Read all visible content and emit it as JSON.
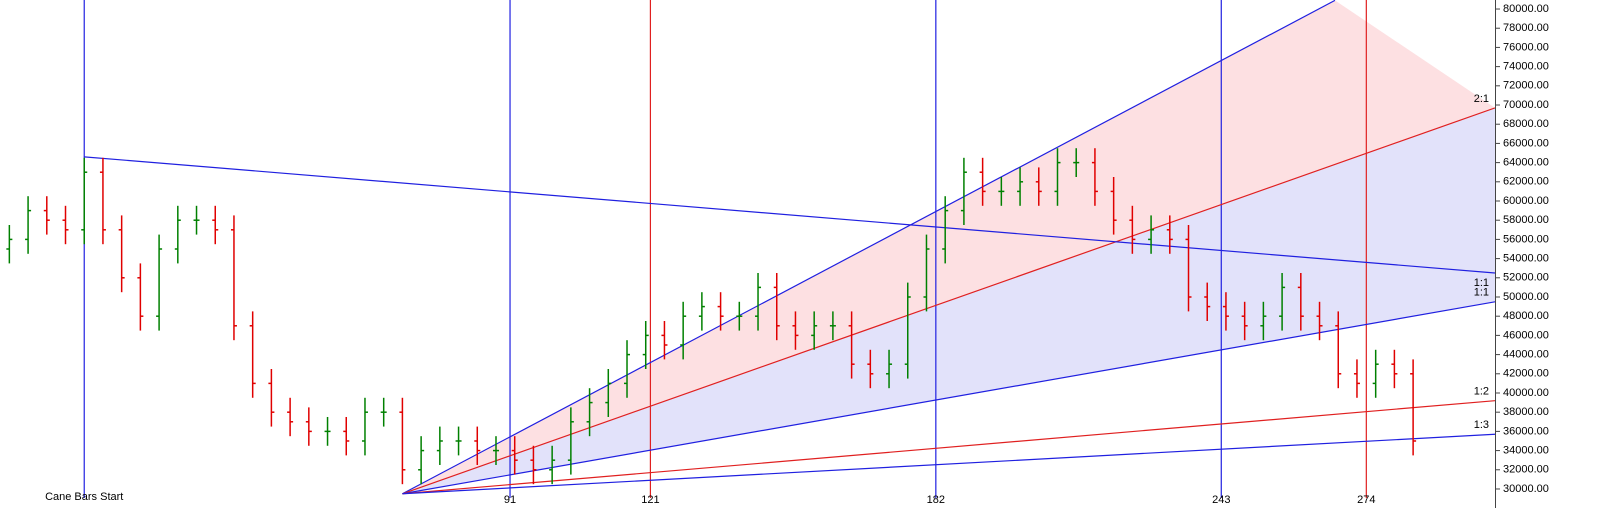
{
  "chart_data": {
    "type": "ohlc",
    "xlim": [
      -18,
      301.5
    ],
    "ylim": [
      29060,
      80940
    ],
    "yticks": [
      {
        "value": 30000,
        "label": "30000.00"
      },
      {
        "value": 32000,
        "label": "32000.00"
      },
      {
        "value": 34000,
        "label": "34000.00"
      },
      {
        "value": 36000,
        "label": "36000.00"
      },
      {
        "value": 38000,
        "label": "38000.00"
      },
      {
        "value": 40000,
        "label": "40000.00"
      },
      {
        "value": 42000,
        "label": "42000.00"
      },
      {
        "value": 44000,
        "label": "44000.00"
      },
      {
        "value": 46000,
        "label": "46000.00"
      },
      {
        "value": 48000,
        "label": "48000.00"
      },
      {
        "value": 50000,
        "label": "50000.00"
      },
      {
        "value": 52000,
        "label": "52000.00"
      },
      {
        "value": 54000,
        "label": "54000.00"
      },
      {
        "value": 56000,
        "label": "56000.00"
      },
      {
        "value": 58000,
        "label": "58000.00"
      },
      {
        "value": 60000,
        "label": "60000.00"
      },
      {
        "value": 62000,
        "label": "62000.00"
      },
      {
        "value": 64000,
        "label": "64000.00"
      },
      {
        "value": 66000,
        "label": "66000.00"
      },
      {
        "value": 68000,
        "label": "68000.00"
      },
      {
        "value": 70000,
        "label": "70000.00"
      },
      {
        "value": 72000,
        "label": "72000.00"
      },
      {
        "value": 74000,
        "label": "74000.00"
      },
      {
        "value": 76000,
        "label": "76000.00"
      },
      {
        "value": 78000,
        "label": "78000.00"
      },
      {
        "value": 80000,
        "label": "80000.00"
      }
    ],
    "xticks": [
      91,
      121,
      182,
      243,
      274
    ],
    "up_color": "#008000",
    "down_color": "#e00000",
    "x": [
      -16,
      -12,
      -8,
      -4,
      0,
      4,
      8,
      12,
      16,
      20,
      24,
      28,
      32,
      36,
      40,
      44,
      48,
      52,
      56,
      60,
      64,
      68,
      72,
      76,
      80,
      84,
      88,
      92,
      96,
      100,
      104,
      108,
      112,
      116,
      120,
      124,
      128,
      132,
      136,
      140,
      144,
      148,
      152,
      156,
      160,
      164,
      168,
      172,
      176,
      180,
      184,
      188,
      192,
      196,
      200,
      204,
      208,
      212,
      216,
      220,
      224,
      228,
      232,
      236,
      240,
      244,
      248,
      252,
      256,
      260,
      264,
      268,
      272,
      276,
      280,
      284
    ],
    "open": [
      55000,
      56000,
      59000,
      58000,
      57000,
      63000,
      57000,
      52000,
      48000,
      55000,
      58000,
      58000,
      57000,
      47000,
      41000,
      38000,
      37000,
      36000,
      36000,
      35000,
      38000,
      38000,
      32000,
      34000,
      35000,
      35000,
      34000,
      34000,
      33000,
      32000,
      33000,
      37000,
      39000,
      41000,
      44000,
      46000,
      45000,
      48000,
      49000,
      48000,
      48000,
      51000,
      47000,
      46000,
      47000,
      47000,
      43000,
      42000,
      43000,
      50000,
      55000,
      59000,
      63000,
      61000,
      61000,
      62000,
      61000,
      64000,
      64000,
      61000,
      58000,
      56000,
      57000,
      56000,
      50000,
      49000,
      48000,
      47000,
      48000,
      51000,
      48000,
      47000,
      42000,
      41000,
      43000,
      42000
    ],
    "high": [
      57500,
      60500,
      60500,
      59500,
      64500,
      64500,
      58500,
      53500,
      56500,
      59500,
      59500,
      59500,
      58500,
      48500,
      42500,
      39500,
      38500,
      37500,
      37500,
      39500,
      39500,
      39500,
      35500,
      36500,
      36500,
      36500,
      35500,
      35500,
      34500,
      34500,
      38500,
      40500,
      42500,
      45500,
      47500,
      47500,
      49500,
      50500,
      50500,
      49500,
      52500,
      52500,
      48500,
      48500,
      48500,
      48500,
      44500,
      44500,
      51500,
      56500,
      60500,
      64500,
      64500,
      62500,
      63500,
      63500,
      65500,
      65500,
      65500,
      62500,
      59500,
      58500,
      58500,
      57500,
      51500,
      50500,
      49500,
      49500,
      52500,
      52500,
      49500,
      48500,
      43500,
      44500,
      44500,
      43500
    ],
    "low": [
      53500,
      54500,
      56500,
      55500,
      55500,
      55500,
      50500,
      46500,
      46500,
      53500,
      56500,
      55500,
      45500,
      39500,
      36500,
      35500,
      34500,
      34500,
      33500,
      33500,
      36500,
      30500,
      30500,
      32500,
      33500,
      32500,
      32500,
      31500,
      30500,
      30500,
      31500,
      35500,
      37500,
      39500,
      42500,
      43500,
      43500,
      46500,
      46500,
      46500,
      46500,
      45500,
      44500,
      44500,
      45500,
      41500,
      40500,
      40500,
      41500,
      48500,
      53500,
      57500,
      59500,
      59500,
      59500,
      59500,
      59500,
      62500,
      59500,
      56500,
      54500,
      54500,
      54500,
      48500,
      47500,
      46500,
      45500,
      45500,
      46500,
      46500,
      45500,
      40500,
      39500,
      39500,
      40500,
      33500
    ],
    "close": [
      56000,
      59000,
      58000,
      57000,
      63000,
      57000,
      52000,
      48000,
      55000,
      58000,
      58000,
      57000,
      47000,
      41000,
      38000,
      37000,
      36000,
      36000,
      35000,
      38000,
      38000,
      32000,
      34000,
      35000,
      35000,
      34000,
      34000,
      33000,
      32000,
      33000,
      37000,
      39000,
      41000,
      44000,
      46000,
      45000,
      48000,
      49000,
      48000,
      48000,
      51000,
      47000,
      46000,
      47000,
      47000,
      43000,
      42000,
      43000,
      50000,
      55000,
      59000,
      63000,
      61000,
      61000,
      62000,
      61000,
      64000,
      64000,
      61000,
      58000,
      56000,
      57000,
      56000,
      50000,
      49000,
      48000,
      47000,
      48000,
      51000,
      48000,
      47000,
      42000,
      41000,
      43000,
      42000,
      35000
    ],
    "vlines": [
      {
        "x": 0,
        "color": "#2020e0"
      },
      {
        "x": 91,
        "color": "#2020e0"
      },
      {
        "x": 121,
        "color": "#e02020"
      },
      {
        "x": 182,
        "color": "#2020e0"
      },
      {
        "x": 243,
        "color": "#2020e0"
      },
      {
        "x": 274,
        "color": "#e02020"
      }
    ],
    "annotation": "Cane Bars Start",
    "fan_lines": [
      {
        "x": [
          68,
          267.3
        ],
        "y": [
          29500,
          80900
        ],
        "color": "#2020e0",
        "fill_below": "#fde0e2"
      },
      {
        "x": [
          68,
          301.5
        ],
        "y": [
          29500,
          69700
        ],
        "color": "#e02020",
        "label": "2:1",
        "fill_below": "#e2e2fa"
      },
      {
        "x": [
          68,
          301.5
        ],
        "y": [
          29500,
          49500
        ],
        "color": "#2020e0",
        "label": "1:1"
      },
      {
        "x": [
          68,
          301.5
        ],
        "y": [
          29500,
          39200
        ],
        "color": "#e02020",
        "label": "1:2"
      },
      {
        "x": [
          68,
          301.5
        ],
        "y": [
          29500,
          35700
        ],
        "color": "#2020e0",
        "label": "1:3"
      },
      {
        "x": [
          0,
          301.5
        ],
        "y": [
          64600,
          52500
        ],
        "color": "#2020e0",
        "label": "1:1"
      }
    ]
  }
}
